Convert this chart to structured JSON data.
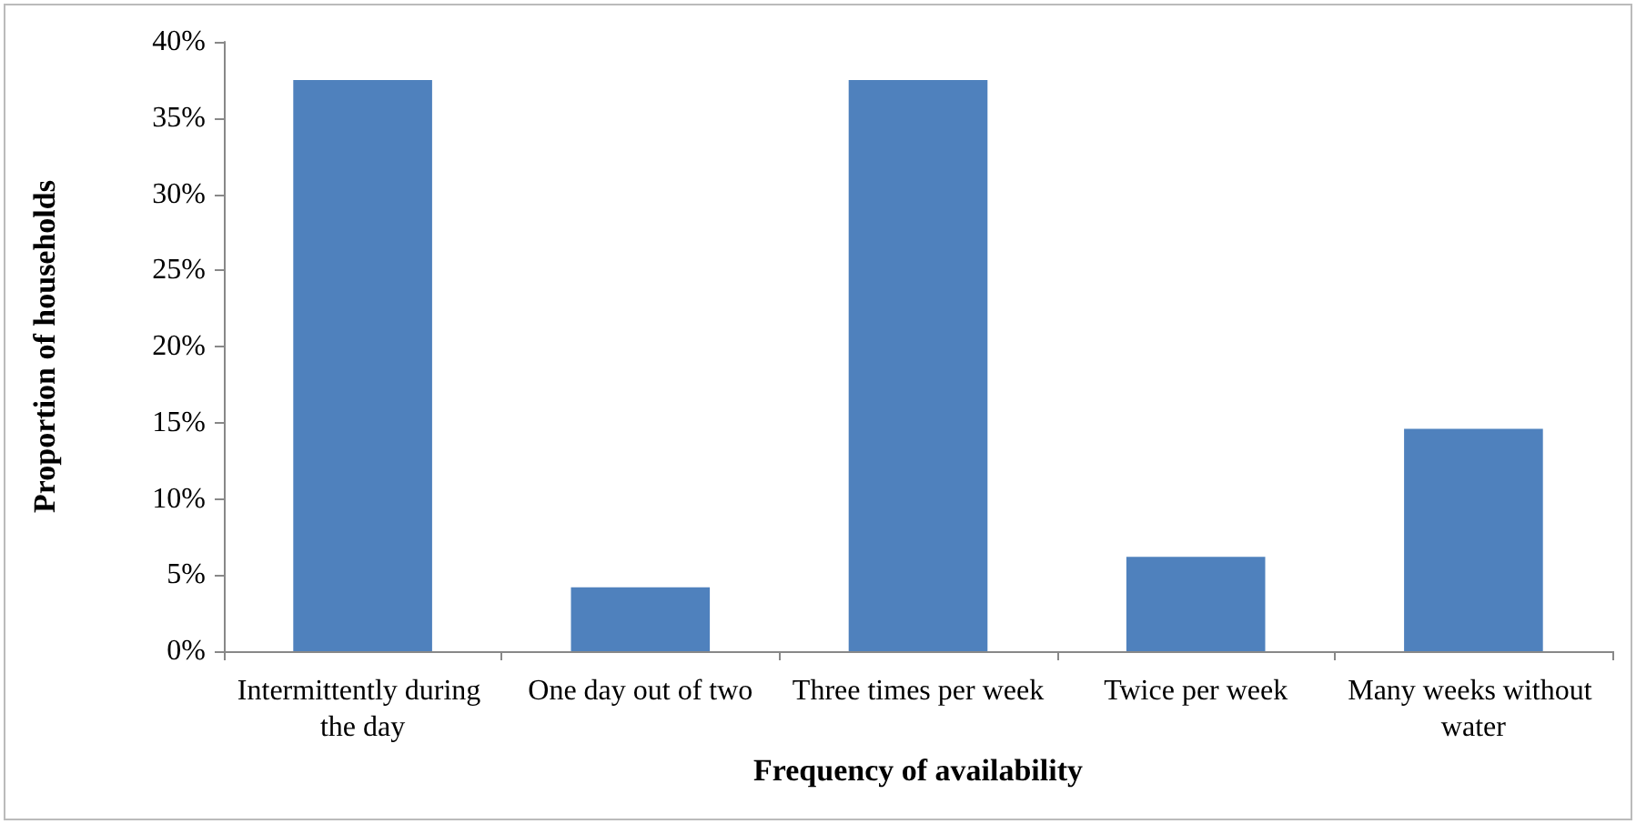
{
  "chart_data": {
    "type": "bar",
    "xlabel": "Frequency of availability",
    "ylabel": "Proportion of households",
    "categories": [
      "Intermittently during the day",
      "One day out of two",
      "Three times per week",
      "Twice per week",
      "Many weeks without water"
    ],
    "values": [
      37.5,
      4.2,
      37.5,
      6.2,
      14.6
    ],
    "color": "#4f81bd",
    "ylim": [
      0,
      40
    ],
    "yticks": [
      {
        "value": 0,
        "label": "0%"
      },
      {
        "value": 5,
        "label": "5%"
      },
      {
        "value": 10,
        "label": "10%"
      },
      {
        "value": 15,
        "label": "15%"
      },
      {
        "value": 20,
        "label": "20%"
      },
      {
        "value": 25,
        "label": "25%"
      },
      {
        "value": 30,
        "label": "30%"
      },
      {
        "value": 35,
        "label": "35%"
      },
      {
        "value": 40,
        "label": "40%"
      }
    ],
    "grid": false
  }
}
